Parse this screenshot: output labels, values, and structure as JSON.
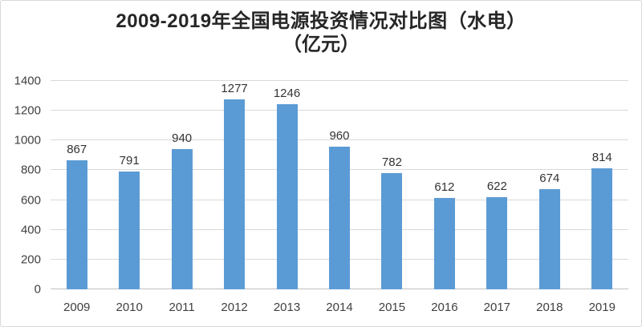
{
  "chart_data": {
    "type": "bar",
    "title": "2009-2019年全国电源投资情况对比图（水电）",
    "subtitle": "（亿元）",
    "categories": [
      "2009",
      "2010",
      "2011",
      "2012",
      "2013",
      "2014",
      "2015",
      "2016",
      "2017",
      "2018",
      "2019"
    ],
    "values": [
      867,
      791,
      940,
      1277,
      1246,
      960,
      782,
      612,
      622,
      674,
      814
    ],
    "xlabel": "",
    "ylabel": "",
    "ylim": [
      0,
      1400
    ],
    "yticks": [
      0,
      200,
      400,
      600,
      800,
      1000,
      1200,
      1400
    ],
    "grid": true,
    "legend_position": "none",
    "data_labels": true,
    "colors": {
      "bar": "#5b9bd5",
      "gridline": "#d9d9d9",
      "axis_line": "#bfbfbf",
      "tick_label": "#404040",
      "data_label": "#333333",
      "title": "#262626",
      "background": "#ffffff",
      "border": "#d9d9d9"
    }
  }
}
